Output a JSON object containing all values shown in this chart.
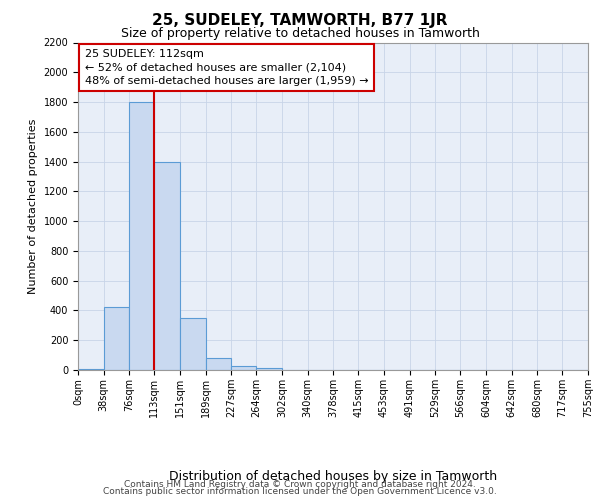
{
  "title": "25, SUDELEY, TAMWORTH, B77 1JR",
  "subtitle": "Size of property relative to detached houses in Tamworth",
  "xlabel": "Distribution of detached houses by size in Tamworth",
  "ylabel": "Number of detached properties",
  "bar_color": "#c9d9f0",
  "bar_edge_color": "#5b9bd5",
  "grid_color": "#c8d4e8",
  "background_color": "#e8eef8",
  "annotation_line_color": "#cc0000",
  "annotation_box_color": "#cc0000",
  "annotation_text_line1": "25 SUDELEY: 112sqm",
  "annotation_text_line2": "← 52% of detached houses are smaller (2,104)",
  "annotation_text_line3": "48% of semi-detached houses are larger (1,959) →",
  "property_sqm": 112,
  "bin_edges": [
    0,
    38,
    76,
    113,
    151,
    189,
    227,
    264,
    302,
    340,
    378,
    415,
    453,
    491,
    529,
    566,
    604,
    642,
    680,
    717,
    755
  ],
  "bin_labels": [
    "0sqm",
    "38sqm",
    "76sqm",
    "113sqm",
    "151sqm",
    "189sqm",
    "227sqm",
    "264sqm",
    "302sqm",
    "340sqm",
    "378sqm",
    "415sqm",
    "453sqm",
    "491sqm",
    "529sqm",
    "566sqm",
    "604sqm",
    "642sqm",
    "680sqm",
    "717sqm",
    "755sqm"
  ],
  "counts": [
    10,
    420,
    1800,
    1400,
    350,
    80,
    30,
    15,
    0,
    0,
    0,
    0,
    0,
    0,
    0,
    0,
    0,
    0,
    0,
    0
  ],
  "ylim": [
    0,
    2200
  ],
  "yticks": [
    0,
    200,
    400,
    600,
    800,
    1000,
    1200,
    1400,
    1600,
    1800,
    2000,
    2200
  ],
  "footer_line1": "Contains HM Land Registry data © Crown copyright and database right 2024.",
  "footer_line2": "Contains public sector information licensed under the Open Government Licence v3.0.",
  "title_fontsize": 11,
  "subtitle_fontsize": 9,
  "xlabel_fontsize": 9,
  "ylabel_fontsize": 8,
  "tick_fontsize": 7,
  "footer_fontsize": 6.5,
  "annotation_fontsize": 8
}
